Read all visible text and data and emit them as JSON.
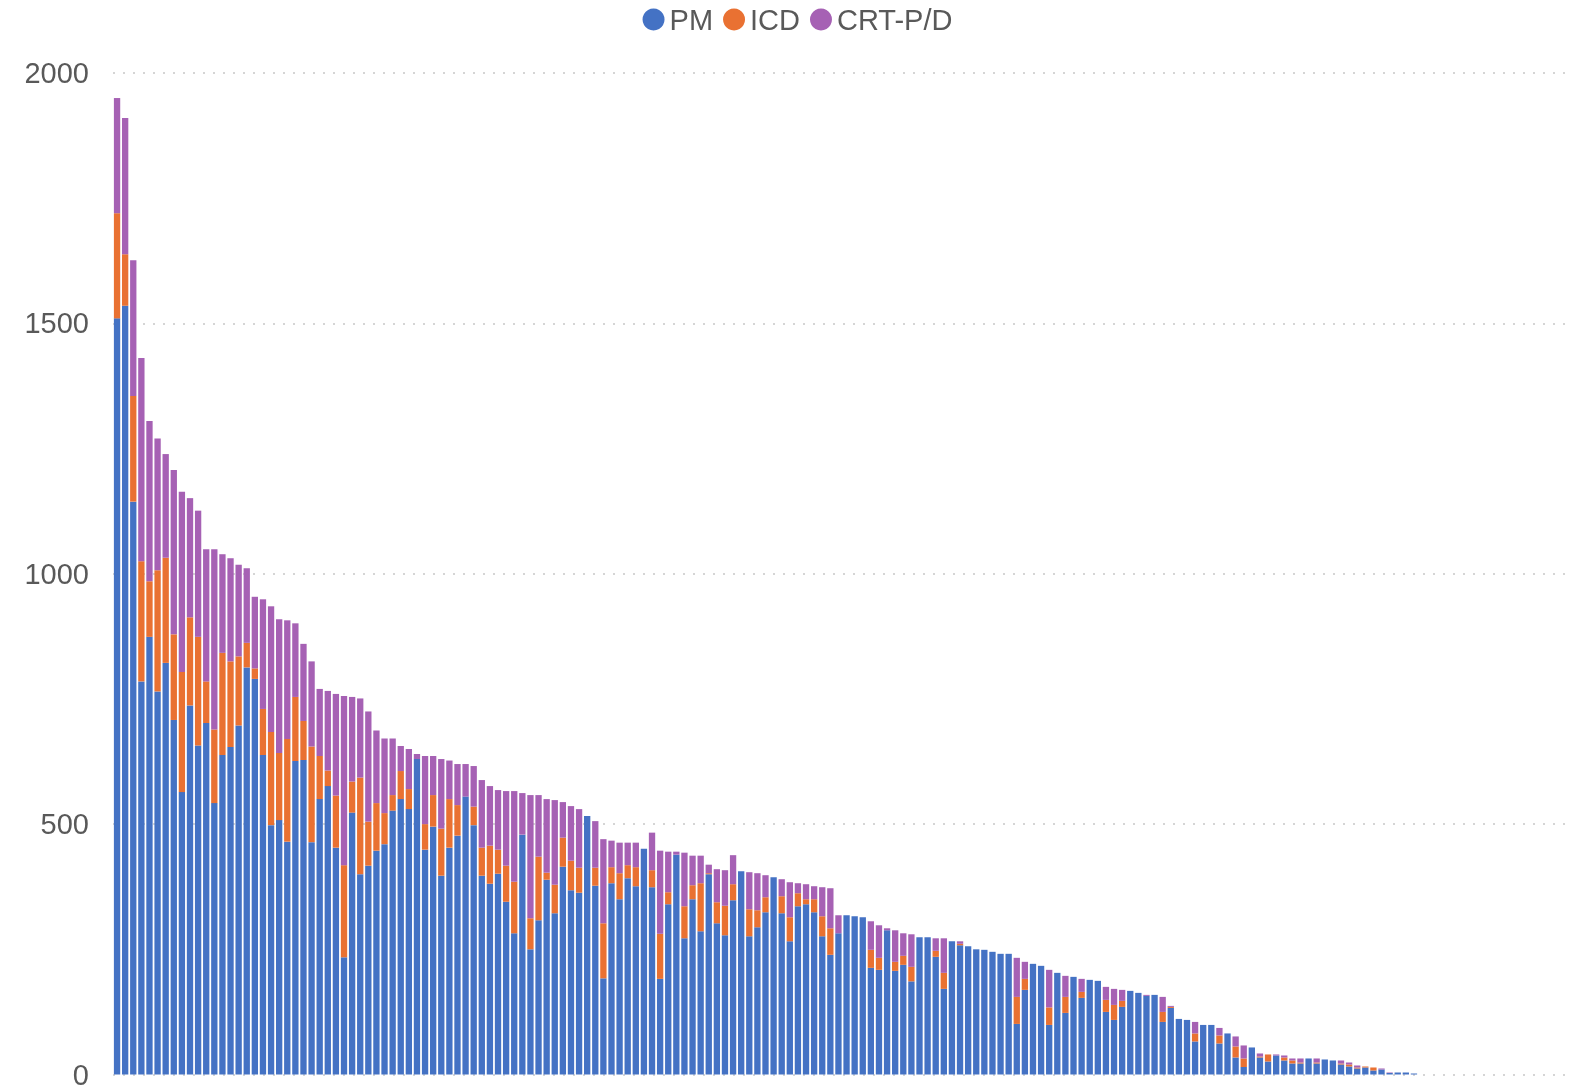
{
  "chart_data": {
    "type": "bar",
    "stacked": true,
    "legend": "top",
    "grid": "y",
    "tick_labels": "y",
    "ylim": [
      0,
      2000
    ],
    "yticks": [
      0,
      500,
      1000,
      1500,
      2000
    ],
    "categories": [
      null,
      null,
      null,
      null,
      null,
      null,
      null,
      null,
      null,
      null,
      null,
      null,
      null,
      null,
      null,
      null,
      null,
      null,
      null,
      null,
      null,
      null,
      null,
      null,
      null,
      null,
      null,
      null,
      null,
      null,
      null,
      null,
      null,
      null,
      null,
      null,
      null,
      null,
      null,
      null,
      null,
      null,
      null,
      null,
      null,
      null,
      null,
      null,
      null,
      null,
      null,
      null,
      null,
      null,
      null,
      null,
      null,
      null,
      null,
      null,
      null,
      null,
      null,
      null,
      null,
      null,
      null,
      null,
      null,
      null,
      null,
      null,
      null,
      null,
      null,
      null,
      null,
      null,
      null,
      null,
      null,
      null,
      null,
      null,
      null,
      null,
      null,
      null,
      null,
      null,
      null,
      null,
      null,
      null,
      null,
      null,
      null,
      null,
      null,
      null,
      null,
      null,
      null,
      null,
      null,
      null,
      null,
      null,
      null,
      null,
      null,
      null,
      null,
      null,
      null,
      null,
      null,
      null,
      null,
      null,
      null,
      null,
      null,
      null,
      null,
      null,
      null,
      null,
      null,
      null,
      null,
      null,
      null,
      null,
      null,
      null,
      null,
      null,
      null,
      null,
      null,
      null,
      null,
      null,
      null,
      null,
      null,
      null,
      null,
      null,
      null,
      null,
      null,
      null,
      null,
      null,
      null,
      null,
      null,
      null,
      null,
      null,
      null,
      null,
      null,
      null,
      null,
      null,
      null,
      null,
      null,
      null,
      null,
      null,
      null,
      null,
      null,
      null,
      null,
      null
    ],
    "series": [
      {
        "name": "PM",
        "color": "#4472c4",
        "values": [
          1510,
          1535,
          1144,
          785,
          874,
          765,
          822,
          708,
          564,
          737,
          657,
          702,
          542,
          638,
          654,
          697,
          813,
          790,
          638,
          498,
          508,
          465,
          626,
          628,
          464,
          550,
          576,
          453,
          234,
          523,
          400,
          417,
          447,
          460,
          527,
          550,
          530,
          630,
          449,
          495,
          397,
          453,
          477,
          555,
          498,
          397,
          381,
          401,
          345,
          282,
          479,
          250,
          308,
          389,
          322,
          415,
          368,
          363,
          516,
          377,
          192,
          382,
          350,
          392,
          376,
          451,
          374,
          191,
          340,
          439,
          272,
          350,
          286,
          400,
          302,
          278,
          348,
          406,
          276,
          294,
          324,
          394,
          322,
          266,
          336,
          340,
          324,
          276,
          239,
          282,
          318,
          316,
          314,
          213,
          209,
          288,
          207,
          219,
          186,
          274,
          274,
          235,
          171,
          266,
          258,
          256,
          250,
          249,
          245,
          241,
          241,
          101,
          169,
          221,
          217,
          99,
          203,
          123,
          195,
          153,
          189,
          187,
          125,
          109,
          135,
          167,
          163,
          157,
          159,
          105,
          133,
          111,
          109,
          66,
          99,
          99,
          62,
          82,
          34,
          15,
          54,
          34,
          26,
          38,
          28,
          22,
          22,
          32,
          22,
          30,
          28,
          20,
          16,
          12,
          14,
          8,
          10,
          3,
          4,
          4,
          2,
          null,
          null,
          null,
          null,
          null,
          null,
          null,
          null,
          null,
          null,
          null,
          null,
          null,
          null,
          null,
          null,
          null,
          null,
          null
        ]
      },
      {
        "name": "ICD",
        "color": "#e97132",
        "values": [
          210,
          103,
          211,
          240,
          111,
          242,
          210,
          171,
          240,
          176,
          217,
          83,
          147,
          204,
          171,
          138,
          49,
          21,
          92,
          186,
          134,
          205,
          128,
          78,
          191,
          86,
          31,
          104,
          184,
          62,
          193,
          88,
          95,
          62,
          31,
          56,
          40,
          null,
          51,
          63,
          94,
          97,
          61,
          null,
          37,
          56,
          76,
          48,
          72,
          103,
          null,
          62,
          127,
          14,
          57,
          58,
          59,
          50,
          null,
          36,
          110,
          32,
          52,
          26,
          38,
          null,
          34,
          90,
          24,
          null,
          64,
          28,
          96,
          2,
          42,
          59,
          32,
          null,
          54,
          34,
          30,
          null,
          34,
          48,
          26,
          10,
          26,
          40,
          53,
          null,
          null,
          null,
          null,
          36,
          24,
          null,
          18,
          18,
          29,
          null,
          null,
          12,
          32,
          null,
          3,
          null,
          null,
          null,
          null,
          null,
          null,
          54,
          22,
          null,
          null,
          35,
          null,
          32,
          null,
          12,
          null,
          null,
          24,
          30,
          12,
          null,
          null,
          null,
          null,
          20,
          2,
          null,
          null,
          16,
          null,
          null,
          16,
          null,
          22,
          17,
          null,
          2,
          14,
          null,
          6,
          6,
          2,
          null,
          2,
          null,
          null,
          2,
          4,
          2,
          2,
          6,
          null,
          null,
          null,
          null,
          null,
          null,
          null,
          null,
          null,
          null,
          null,
          null,
          null,
          null,
          null,
          null,
          null,
          null,
          null,
          null,
          null,
          null,
          null,
          null
        ]
      },
      {
        "name": "CRT-P/D",
        "color": "#a661b4",
        "values": [
          230,
          272,
          271,
          406,
          320,
          263,
          207,
          328,
          360,
          238,
          252,
          264,
          360,
          197,
          206,
          183,
          149,
          143,
          219,
          251,
          267,
          237,
          147,
          154,
          170,
          134,
          159,
          203,
          338,
          169,
          158,
          220,
          145,
          149,
          113,
          50,
          80,
          10,
          136,
          78,
          139,
          77,
          82,
          65,
          81,
          135,
          119,
          119,
          149,
          181,
          83,
          246,
          123,
          147,
          169,
          71,
          109,
          117,
          null,
          93,
          168,
          53,
          61,
          45,
          49,
          null,
          75,
          166,
          81,
          6,
          107,
          59,
          55,
          17,
          66,
          71,
          58,
          null,
          74,
          74,
          44,
          null,
          34,
          70,
          20,
          30,
          26,
          58,
          80,
          36,
          null,
          null,
          null,
          57,
          65,
          4,
          63,
          45,
          65,
          null,
          null,
          25,
          69,
          null,
          5,
          null,
          null,
          null,
          null,
          null,
          null,
          78,
          34,
          null,
          null,
          75,
          null,
          42,
          null,
          26,
          null,
          null,
          26,
          32,
          22,
          null,
          null,
          2,
          null,
          30,
          2,
          null,
          null,
          23,
          null,
          null,
          15,
          null,
          20,
          26,
          null,
          6,
          null,
          2,
          4,
          4,
          8,
          null,
          8,
          null,
          null,
          6,
          4,
          4,
          null,
          null,
          2,
          1,
          null,
          null,
          null,
          null,
          null,
          null,
          null,
          null,
          null,
          null,
          null,
          null,
          null,
          null,
          null,
          null,
          null,
          null,
          null,
          null,
          null,
          null
        ]
      }
    ]
  }
}
